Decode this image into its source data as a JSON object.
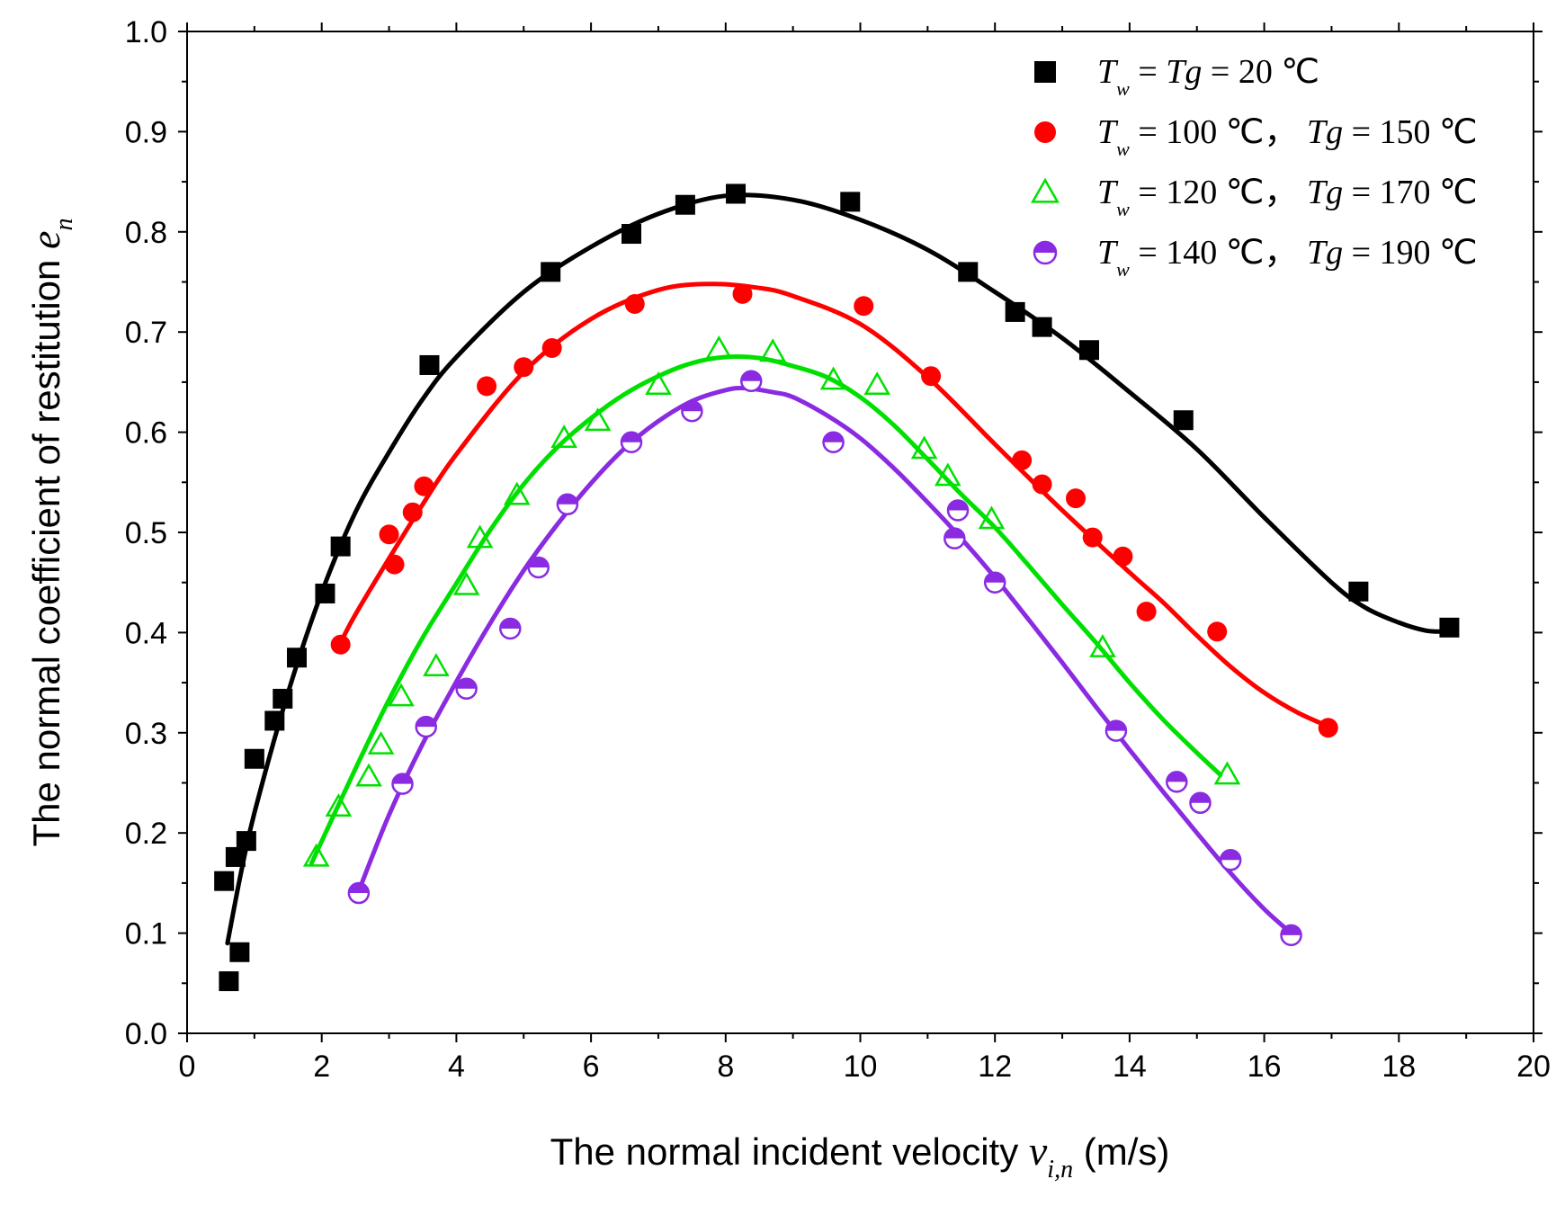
{
  "chart_data": {
    "type": "scatter",
    "title": "",
    "xlabel": {
      "prefix": "The normal incident velocity ",
      "symbol": "v",
      "subscript": "i,n",
      "suffix": " (m/s)"
    },
    "ylabel": {
      "prefix": "The normal  coefficient of restitution ",
      "symbol": "e",
      "subscript": "n"
    },
    "xlim": [
      0,
      20
    ],
    "ylim": [
      0.0,
      1.0
    ],
    "xticks": [
      0,
      2,
      4,
      6,
      8,
      10,
      12,
      14,
      16,
      18,
      20
    ],
    "yticks": [
      0.0,
      0.1,
      0.2,
      0.3,
      0.4,
      0.5,
      0.6,
      0.7,
      0.8,
      0.9,
      1.0
    ],
    "xtick_labels": [
      "0",
      "2",
      "4",
      "6",
      "8",
      "10",
      "12",
      "14",
      "16",
      "18",
      "20"
    ],
    "ytick_labels": [
      "0.0",
      "0.1",
      "0.2",
      "0.3",
      "0.4",
      "0.5",
      "0.6",
      "0.7",
      "0.8",
      "0.9",
      "1.0"
    ],
    "grid": false,
    "legend_position": "top-right",
    "series": [
      {
        "name": "Tw = Tg = 20 ℃",
        "legend": [
          {
            "t": "T",
            "it": true
          },
          {
            "t": "w",
            "sub": true
          },
          {
            "t": " = "
          },
          {
            "t": "Tg",
            "it": true
          },
          {
            "t": " = 20 ℃"
          }
        ],
        "color": "#000000",
        "marker": "square",
        "points": [
          [
            0.55,
            0.152
          ],
          [
            0.62,
            0.052
          ],
          [
            0.72,
            0.176
          ],
          [
            0.78,
            0.081
          ],
          [
            0.88,
            0.192
          ],
          [
            1.0,
            0.274
          ],
          [
            1.3,
            0.312
          ],
          [
            1.42,
            0.334
          ],
          [
            1.63,
            0.375
          ],
          [
            2.05,
            0.439
          ],
          [
            2.28,
            0.486
          ],
          [
            3.6,
            0.667
          ],
          [
            5.4,
            0.76
          ],
          [
            6.6,
            0.798
          ],
          [
            7.4,
            0.827
          ],
          [
            8.15,
            0.838
          ],
          [
            9.85,
            0.83
          ],
          [
            11.6,
            0.76
          ],
          [
            12.3,
            0.72
          ],
          [
            12.7,
            0.705
          ],
          [
            13.4,
            0.682
          ],
          [
            14.8,
            0.612
          ],
          [
            17.4,
            0.441
          ],
          [
            18.75,
            0.405
          ]
        ],
        "fit": [
          [
            0.6,
            0.09
          ],
          [
            0.8,
            0.16
          ],
          [
            1.0,
            0.22
          ],
          [
            1.5,
            0.34
          ],
          [
            2.0,
            0.44
          ],
          [
            2.5,
            0.52
          ],
          [
            3.0,
            0.58
          ],
          [
            3.5,
            0.633
          ],
          [
            4.0,
            0.675
          ],
          [
            5.0,
            0.74
          ],
          [
            6.0,
            0.785
          ],
          [
            7.0,
            0.818
          ],
          [
            8.0,
            0.836
          ],
          [
            9.0,
            0.832
          ],
          [
            10.0,
            0.812
          ],
          [
            11.0,
            0.782
          ],
          [
            12.0,
            0.74
          ],
          [
            13.0,
            0.694
          ],
          [
            14.0,
            0.64
          ],
          [
            15.0,
            0.583
          ],
          [
            16.0,
            0.515
          ],
          [
            17.0,
            0.45
          ],
          [
            17.5,
            0.425
          ],
          [
            18.0,
            0.41
          ],
          [
            18.4,
            0.402
          ],
          [
            18.7,
            0.401
          ]
        ]
      },
      {
        "name": "Tw = 100 ℃， Tg = 150 ℃",
        "legend": [
          {
            "t": "T",
            "it": true
          },
          {
            "t": "w",
            "sub": true
          },
          {
            "t": " = 100 ℃，  "
          },
          {
            "t": "Tg",
            "it": true
          },
          {
            "t": " = 150 ℃"
          }
        ],
        "color": "#ff0000",
        "marker": "circle",
        "points": [
          [
            2.28,
            0.388
          ],
          [
            3.0,
            0.498
          ],
          [
            3.08,
            0.468
          ],
          [
            3.35,
            0.52
          ],
          [
            3.52,
            0.546
          ],
          [
            4.45,
            0.646
          ],
          [
            5.0,
            0.665
          ],
          [
            5.42,
            0.684
          ],
          [
            6.65,
            0.728
          ],
          [
            8.25,
            0.738
          ],
          [
            10.05,
            0.726
          ],
          [
            11.05,
            0.656
          ],
          [
            12.4,
            0.572
          ],
          [
            12.7,
            0.548
          ],
          [
            13.2,
            0.534
          ],
          [
            13.45,
            0.495
          ],
          [
            13.9,
            0.476
          ],
          [
            14.25,
            0.421
          ],
          [
            15.3,
            0.401
          ],
          [
            16.95,
            0.305
          ]
        ],
        "fit": [
          [
            2.28,
            0.39
          ],
          [
            2.5,
            0.418
          ],
          [
            3.0,
            0.474
          ],
          [
            3.5,
            0.528
          ],
          [
            4.0,
            0.578
          ],
          [
            5.0,
            0.66
          ],
          [
            6.0,
            0.713
          ],
          [
            7.0,
            0.742
          ],
          [
            7.8,
            0.748
          ],
          [
            8.5,
            0.744
          ],
          [
            9.0,
            0.736
          ],
          [
            10.0,
            0.708
          ],
          [
            11.0,
            0.655
          ],
          [
            12.0,
            0.588
          ],
          [
            13.0,
            0.522
          ],
          [
            14.0,
            0.46
          ],
          [
            14.5,
            0.43
          ],
          [
            15.0,
            0.397
          ],
          [
            15.5,
            0.366
          ],
          [
            16.0,
            0.34
          ],
          [
            16.5,
            0.32
          ],
          [
            17.0,
            0.305
          ]
        ]
      },
      {
        "name": "Tw = 120 ℃， Tg = 170 ℃",
        "legend": [
          {
            "t": "T",
            "it": true
          },
          {
            "t": "w",
            "sub": true
          },
          {
            "t": " = 120 ℃，  "
          },
          {
            "t": "Tg",
            "it": true
          },
          {
            "t": " = 170 ℃"
          }
        ],
        "color": "#00e000",
        "marker": "triangle-open",
        "points": [
          [
            1.92,
            0.176
          ],
          [
            2.25,
            0.226
          ],
          [
            2.7,
            0.256
          ],
          [
            2.88,
            0.288
          ],
          [
            3.18,
            0.336
          ],
          [
            3.7,
            0.366
          ],
          [
            4.15,
            0.447
          ],
          [
            4.35,
            0.494
          ],
          [
            4.9,
            0.537
          ],
          [
            5.6,
            0.594
          ],
          [
            6.1,
            0.611
          ],
          [
            7.0,
            0.647
          ],
          [
            7.9,
            0.683
          ],
          [
            8.7,
            0.68
          ],
          [
            9.6,
            0.652
          ],
          [
            10.25,
            0.647
          ],
          [
            10.95,
            0.583
          ],
          [
            11.3,
            0.556
          ],
          [
            11.95,
            0.513
          ],
          [
            13.6,
            0.385
          ],
          [
            15.45,
            0.258
          ]
        ],
        "fit": [
          [
            1.85,
            0.17
          ],
          [
            2.5,
            0.264
          ],
          [
            3.0,
            0.333
          ],
          [
            3.5,
            0.395
          ],
          [
            4.0,
            0.449
          ],
          [
            4.5,
            0.502
          ],
          [
            5.0,
            0.548
          ],
          [
            5.5,
            0.585
          ],
          [
            6.0,
            0.614
          ],
          [
            6.5,
            0.638
          ],
          [
            7.0,
            0.656
          ],
          [
            7.5,
            0.669
          ],
          [
            8.0,
            0.675
          ],
          [
            8.5,
            0.674
          ],
          [
            9.0,
            0.666
          ],
          [
            9.5,
            0.655
          ],
          [
            10.0,
            0.635
          ],
          [
            10.5,
            0.607
          ],
          [
            11.0,
            0.573
          ],
          [
            11.5,
            0.538
          ],
          [
            12.0,
            0.505
          ],
          [
            12.5,
            0.467
          ],
          [
            13.0,
            0.428
          ],
          [
            13.5,
            0.39
          ],
          [
            14.0,
            0.35
          ],
          [
            14.5,
            0.313
          ],
          [
            15.0,
            0.28
          ],
          [
            15.35,
            0.258
          ]
        ]
      },
      {
        "name": "Tw = 140 ℃， Tg = 190 ℃",
        "legend": [
          {
            "t": "T",
            "it": true
          },
          {
            "t": "w",
            "sub": true
          },
          {
            "t": " = 140 ℃，  "
          },
          {
            "t": "Tg",
            "it": true
          },
          {
            "t": " = 190 ℃"
          }
        ],
        "color": "#8a2be2",
        "marker": "circle-half",
        "points": [
          [
            2.55,
            0.14
          ],
          [
            3.2,
            0.249
          ],
          [
            3.55,
            0.306
          ],
          [
            4.15,
            0.344
          ],
          [
            4.8,
            0.404
          ],
          [
            5.22,
            0.465
          ],
          [
            5.65,
            0.528
          ],
          [
            6.6,
            0.59
          ],
          [
            7.5,
            0.621
          ],
          [
            8.38,
            0.651
          ],
          [
            9.6,
            0.59
          ],
          [
            11.4,
            0.494
          ],
          [
            11.45,
            0.522
          ],
          [
            12.0,
            0.45
          ],
          [
            13.8,
            0.302
          ],
          [
            14.7,
            0.251
          ],
          [
            15.05,
            0.23
          ],
          [
            15.5,
            0.173
          ],
          [
            16.4,
            0.098
          ]
        ],
        "fit": [
          [
            2.55,
            0.142
          ],
          [
            3.0,
            0.218
          ],
          [
            3.5,
            0.289
          ],
          [
            4.0,
            0.351
          ],
          [
            4.5,
            0.409
          ],
          [
            5.0,
            0.462
          ],
          [
            5.5,
            0.508
          ],
          [
            6.0,
            0.549
          ],
          [
            6.5,
            0.584
          ],
          [
            7.0,
            0.611
          ],
          [
            7.5,
            0.631
          ],
          [
            8.0,
            0.642
          ],
          [
            8.3,
            0.644
          ],
          [
            8.7,
            0.64
          ],
          [
            9.0,
            0.635
          ],
          [
            9.5,
            0.617
          ],
          [
            10.0,
            0.594
          ],
          [
            10.5,
            0.564
          ],
          [
            11.0,
            0.53
          ],
          [
            11.5,
            0.494
          ],
          [
            12.0,
            0.455
          ],
          [
            12.5,
            0.413
          ],
          [
            13.0,
            0.37
          ],
          [
            13.5,
            0.326
          ],
          [
            14.0,
            0.283
          ],
          [
            14.5,
            0.241
          ],
          [
            15.0,
            0.2
          ],
          [
            15.5,
            0.16
          ],
          [
            16.0,
            0.124
          ],
          [
            16.4,
            0.1
          ]
        ]
      }
    ]
  }
}
